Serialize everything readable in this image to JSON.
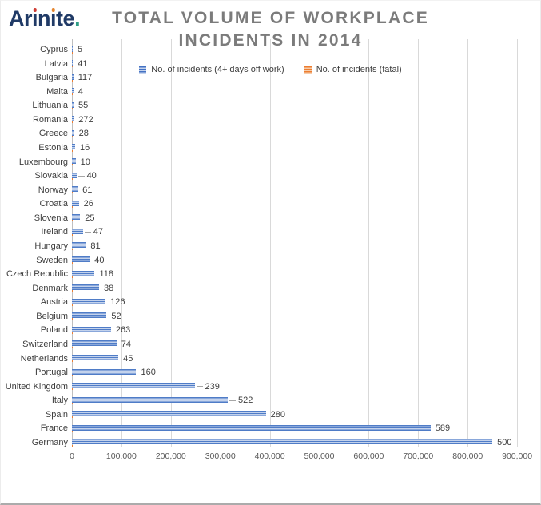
{
  "logo": {
    "text": "Arinite.",
    "color": "#203a66",
    "segments": [
      {
        "text": "Ar"
      },
      {
        "text": "ı",
        "dot": "#cf3b33"
      },
      {
        "text": "n"
      },
      {
        "text": "ı",
        "dot": "#e5862f"
      },
      {
        "text": "te"
      },
      {
        "text": ".",
        "color": "#2f9d85"
      }
    ]
  },
  "title": {
    "line1": "TOTAL VOLUME OF WORKPLACE",
    "line2": "INCIDENTS IN 2014",
    "color": "#7b7b7b"
  },
  "legend": {
    "items": [
      {
        "label": "No. of incidents (4+ days off work)",
        "color": "#4472c4"
      },
      {
        "label": "No. of incidents (fatal)",
        "color": "#ed7d31"
      }
    ]
  },
  "chart_data": {
    "type": "bar",
    "orientation": "horizontal",
    "title": "TOTAL VOLUME OF WORKPLACE INCIDENTS IN 2014",
    "categories": [
      "Cyprus",
      "Latvia",
      "Bulgaria",
      "Malta",
      "Lithuania",
      "Romania",
      "Greece",
      "Estonia",
      "Luxembourg",
      "Slovakia",
      "Norway",
      "Croatia",
      "Slovenia",
      "Ireland",
      "Hungary",
      "Sweden",
      "Czech Republic",
      "Denmark",
      "Austria",
      "Belgium",
      "Poland",
      "Switzerland",
      "Netherlands",
      "Portugal",
      "United Kingdom",
      "Italy",
      "Spain",
      "France",
      "Germany"
    ],
    "series": [
      {
        "name": "No. of incidents (4+ days off work)",
        "color": "#4472c4",
        "values": [
          1700,
          2000,
          2800,
          3000,
          3200,
          3600,
          4200,
          6500,
          7500,
          9000,
          11500,
          14000,
          16500,
          22500,
          28000,
          36000,
          46000,
          55000,
          68000,
          70000,
          79000,
          90000,
          94000,
          130000,
          248000,
          315000,
          392000,
          725000,
          850000
        ]
      },
      {
        "name": "No. of incidents (fatal)",
        "color": "#ed7d31",
        "values": [
          5,
          41,
          117,
          4,
          55,
          272,
          28,
          16,
          10,
          40,
          61,
          26,
          25,
          47,
          81,
          40,
          118,
          38,
          126,
          52,
          263,
          74,
          45,
          160,
          239,
          522,
          280,
          589,
          500
        ]
      }
    ],
    "data_labels": {
      "series": "No. of incidents (fatal)",
      "position": "outside end of blue bar"
    },
    "leader_label_rows": [
      "Slovakia",
      "Ireland",
      "United Kingdom",
      "Italy"
    ],
    "xlabel": "",
    "ylabel": "",
    "xlim": [
      0,
      900000
    ],
    "x_ticks": [
      "0",
      "100,000",
      "200,000",
      "300,000",
      "400,000",
      "500,000",
      "600,000",
      "700,000",
      "800,000",
      "900,000"
    ],
    "grid": true,
    "legend_position": "top-center"
  }
}
